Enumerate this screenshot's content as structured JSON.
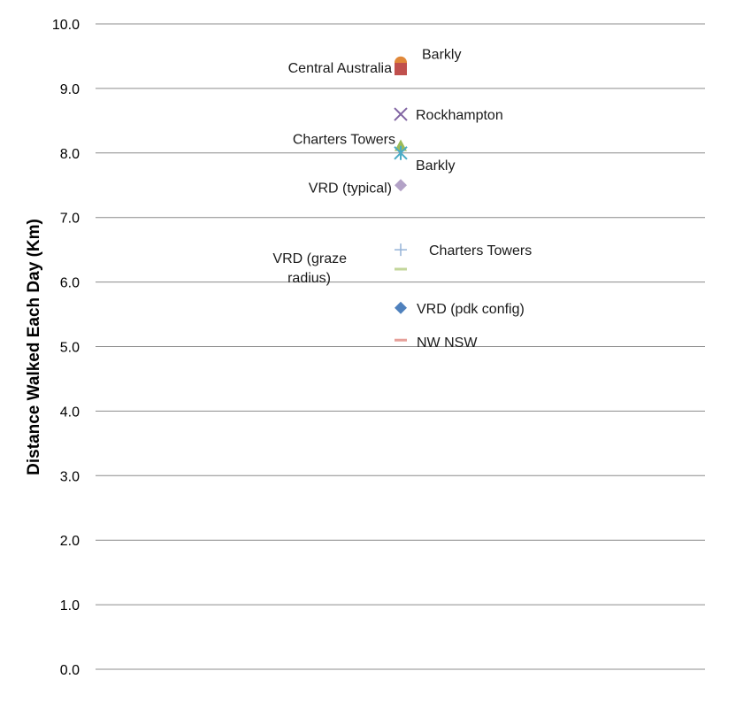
{
  "chart_data": {
    "type": "scatter",
    "title": "",
    "xlabel": "",
    "ylabel": "Distance Walked Each Day (Km)",
    "ylim": [
      0,
      10
    ],
    "yticks": [
      "0.0",
      "1.0",
      "2.0",
      "3.0",
      "4.0",
      "5.0",
      "6.0",
      "7.0",
      "8.0",
      "9.0",
      "10.0"
    ],
    "grid": true,
    "legend": "none",
    "points": [
      {
        "label": "Barkly",
        "y": 9.4,
        "marker": "circle",
        "color": "#e0883a"
      },
      {
        "label": "Central Australia",
        "y": 9.3,
        "marker": "square",
        "color": "#c0504d"
      },
      {
        "label": "Rockhampton",
        "y": 8.6,
        "marker": "x",
        "color": "#8064a2"
      },
      {
        "label": "Charters Towers",
        "y": 8.1,
        "marker": "triangle",
        "color": "#9bbb59"
      },
      {
        "label": "Barkly",
        "y": 8.0,
        "marker": "star",
        "color": "#4bacc6"
      },
      {
        "label": "VRD (typical)",
        "y": 7.5,
        "marker": "diamond",
        "color": "#b3a2c7"
      },
      {
        "label": "Charters Towers",
        "y": 6.5,
        "marker": "plus",
        "color": "#95b3d7"
      },
      {
        "label": "VRD (graze radius)",
        "y": 6.2,
        "marker": "dash",
        "color": "#c3d69b"
      },
      {
        "label": "VRD (pdk config)",
        "y": 5.6,
        "marker": "diamond",
        "color": "#4f81bd"
      },
      {
        "label": "NW NSW",
        "y": 5.1,
        "marker": "dash",
        "color": "#e6a09a"
      }
    ]
  }
}
